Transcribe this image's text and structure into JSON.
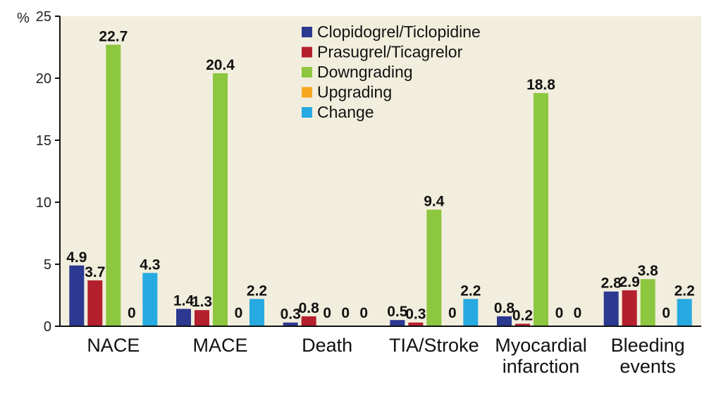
{
  "chart_data": {
    "type": "bar",
    "unit_label": "%",
    "ylim": [
      0,
      25
    ],
    "yticks": [
      "0",
      "5",
      "10",
      "15",
      "20",
      "25"
    ],
    "categories": [
      [
        "NACE"
      ],
      [
        "MACE"
      ],
      [
        "Death"
      ],
      [
        "TIA/Stroke"
      ],
      [
        "Myocardial",
        "infarction"
      ],
      [
        "Bleeding",
        "events"
      ]
    ],
    "series": [
      {
        "name": "Clopidogrel/Ticlopidine",
        "color": "#2b3990",
        "values": [
          4.9,
          1.4,
          0.3,
          0.5,
          0.8,
          2.8
        ],
        "labels": [
          "4.9",
          "1.4",
          "0.3",
          "0.5",
          "0.8",
          "2.8"
        ]
      },
      {
        "name": "Prasugrel/Ticagrelor",
        "color": "#b5202e",
        "values": [
          3.7,
          1.3,
          0.8,
          0.3,
          0.2,
          2.9
        ],
        "labels": [
          "3.7",
          "1.3",
          "0.8",
          "0.3",
          "0.2",
          "2.9"
        ]
      },
      {
        "name": "Downgrading",
        "color": "#8dc63f",
        "values": [
          22.7,
          20.4,
          0,
          9.4,
          18.8,
          3.8
        ],
        "labels": [
          "22.7",
          "20.4",
          "0",
          "9.4",
          "18.8",
          "3.8"
        ]
      },
      {
        "name": "Upgrading",
        "color": "#f7a823",
        "values": [
          0,
          0,
          0,
          0,
          0,
          0
        ],
        "labels": [
          "0",
          "0",
          "0",
          "0",
          "0",
          "0"
        ]
      },
      {
        "name": "Change",
        "color": "#27aae1",
        "values": [
          4.3,
          2.2,
          0,
          2.2,
          0,
          2.2
        ],
        "labels": [
          "4.3",
          "2.2",
          "0",
          "2.2",
          "0",
          "2.2"
        ]
      }
    ],
    "grid": false,
    "legend_position": "top-center",
    "plot_background": "#f2eedd"
  }
}
